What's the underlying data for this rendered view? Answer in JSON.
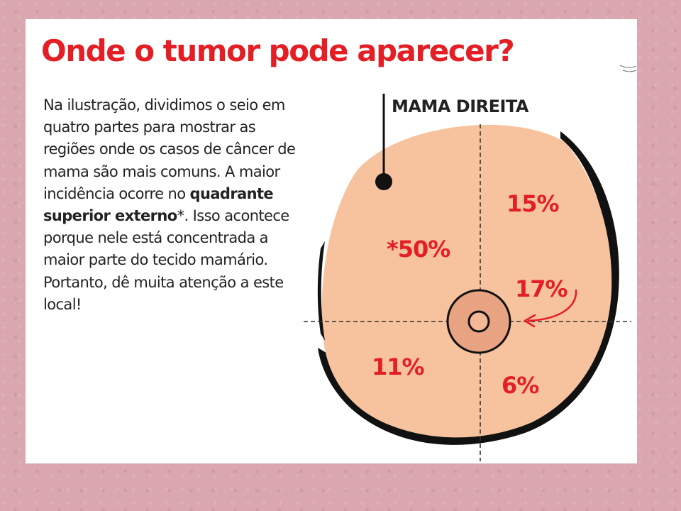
{
  "title": "Onde o tumor pode aparecer?",
  "text": {
    "part1": "Na ilustração, dividimos o seio em quatro partes para mostrar as regiões onde os casos de câncer de mama são mais comuns. A maior incidência ocorre no ",
    "bold": "quadrante superior externo",
    "part2": "*. Isso acontece porque nele está concentrada a maior parte do tecido mamário. Portanto, dê muita atenção a este local!"
  },
  "diagram": {
    "label": "MAMA DIREITA",
    "quadrants": {
      "upper_outer": "*50%",
      "upper_inner": "15%",
      "central": "17%",
      "lower_outer": "11%",
      "lower_inner": "6%"
    },
    "colors": {
      "skin": "#f7c39e",
      "areola": "#e8a482",
      "outline": "#111111",
      "percent": "#e31e24"
    }
  }
}
